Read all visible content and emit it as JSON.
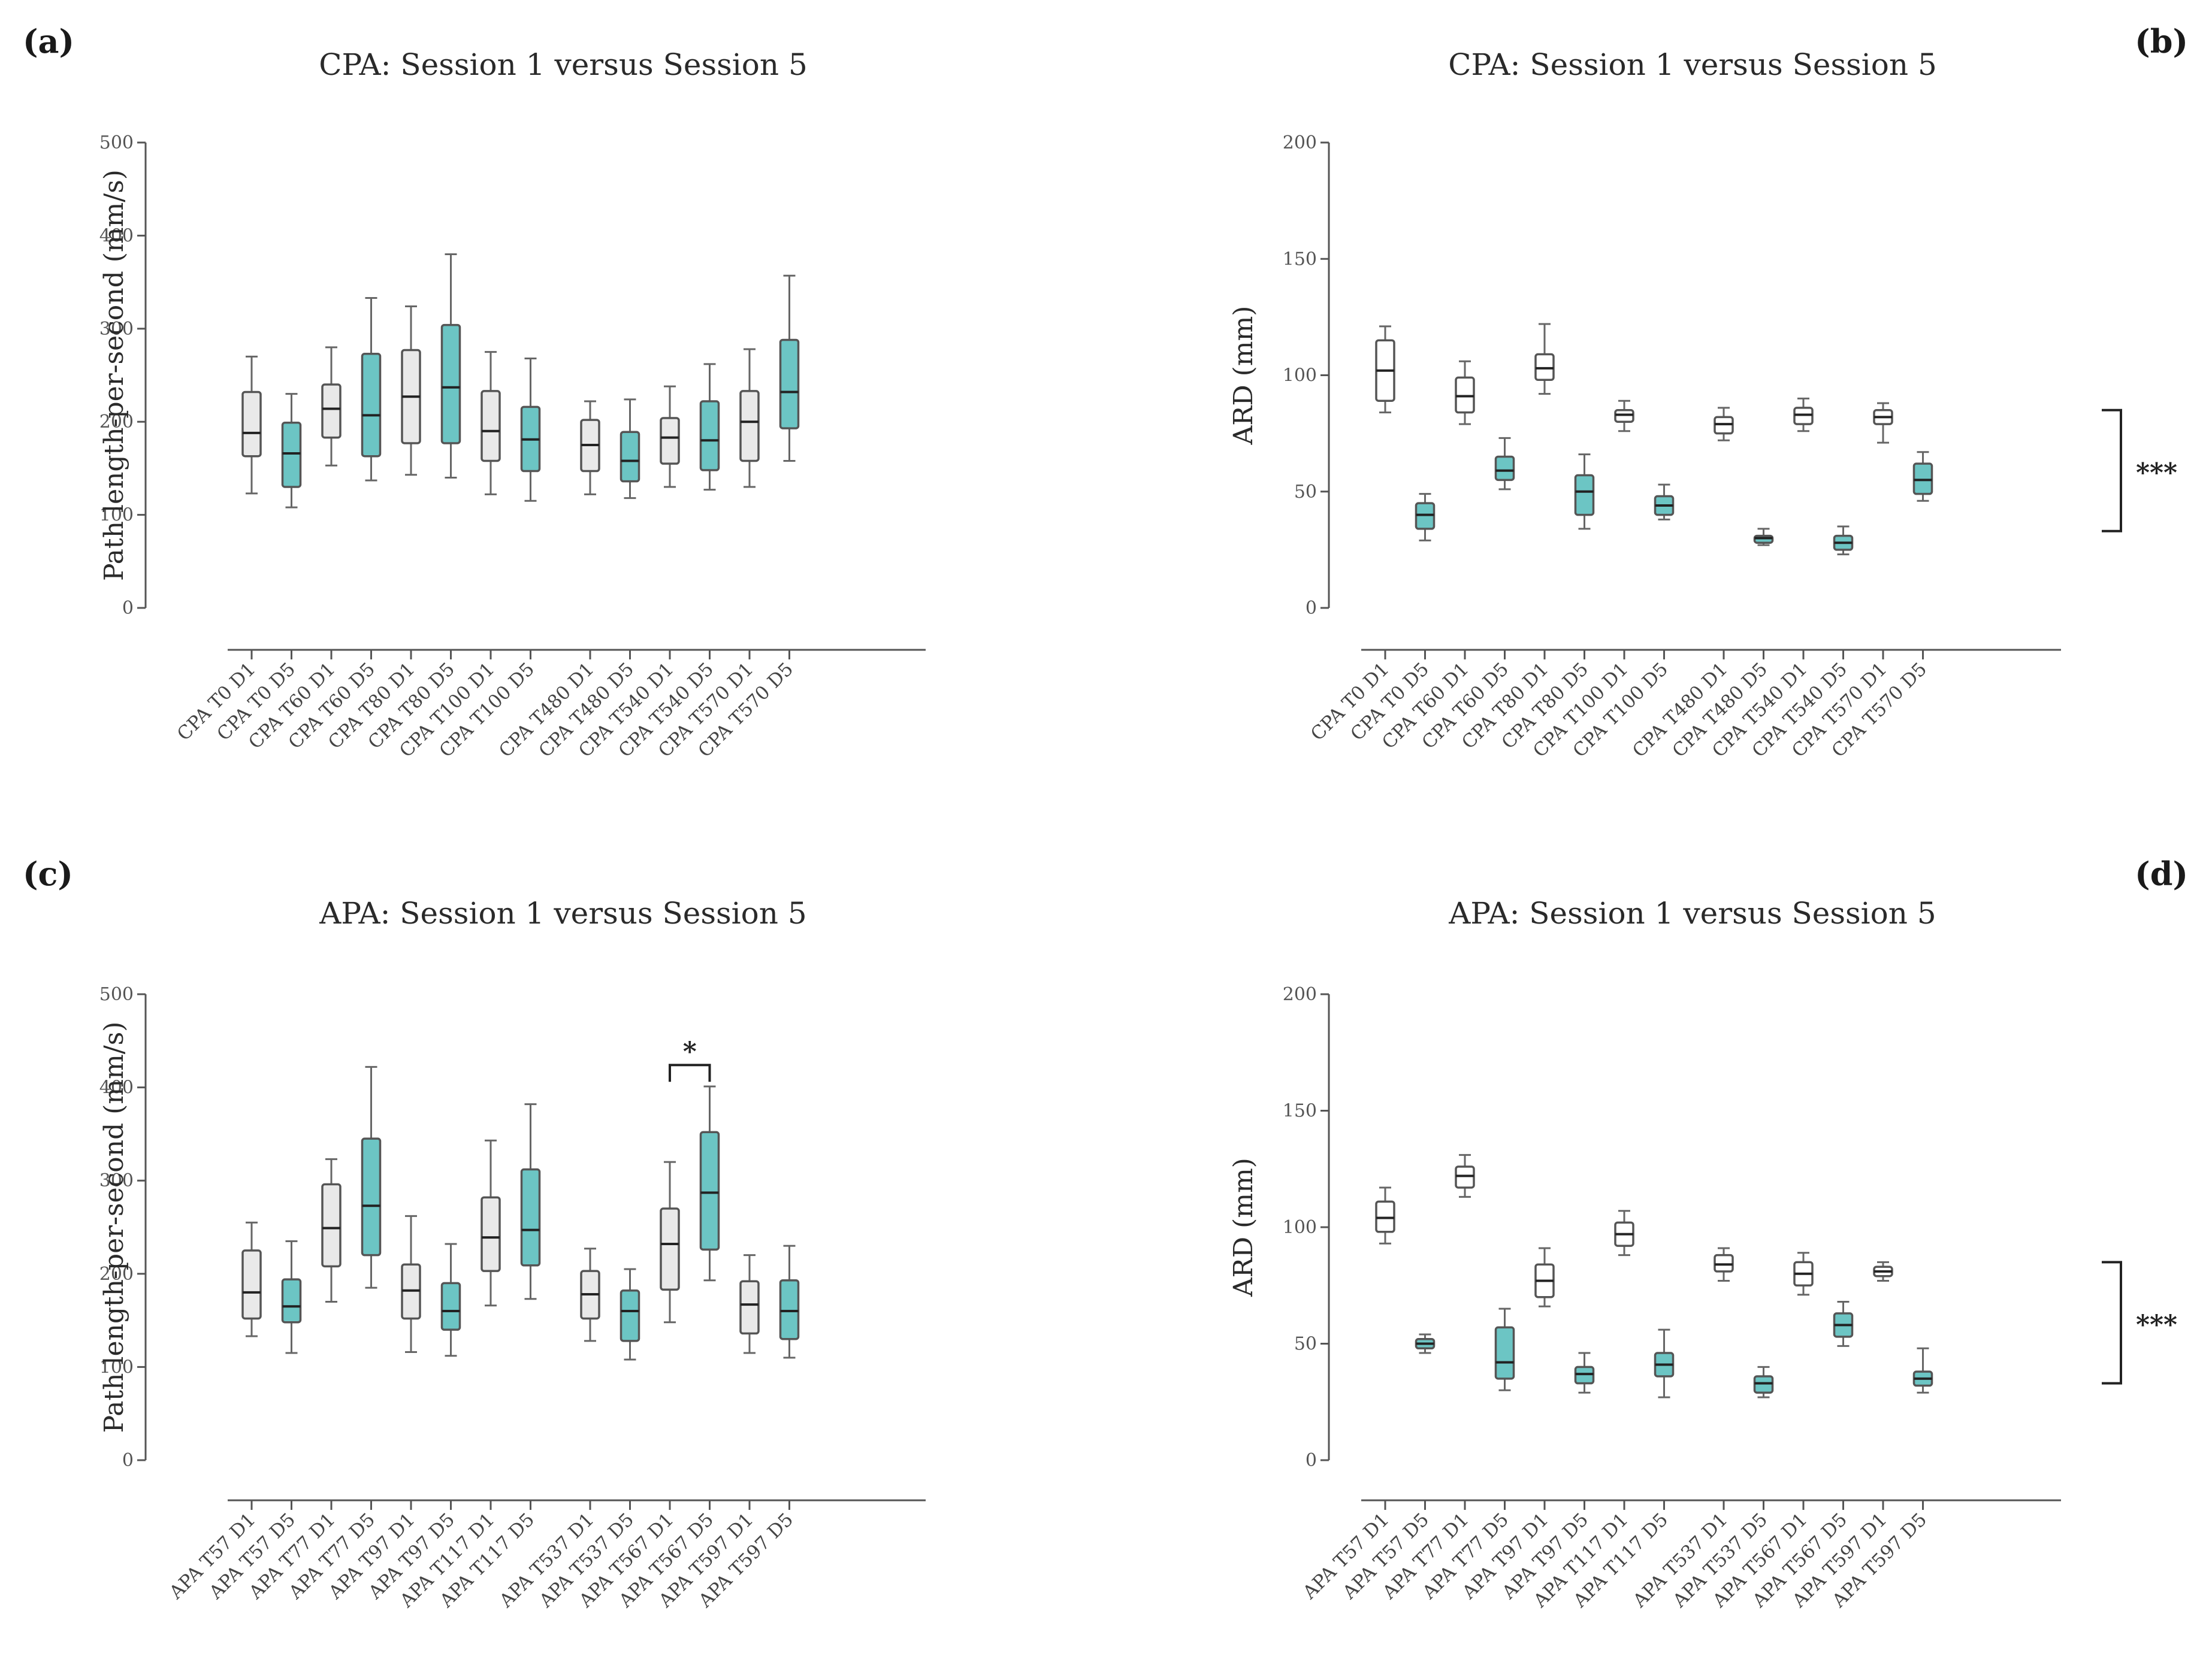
{
  "colors": {
    "d1_fill": "#e9e9e9",
    "d5_fill": "#6cc5c4",
    "axis": "#555555"
  },
  "chart_data": [
    {
      "type": "boxplot",
      "panel_label": "(a)",
      "title": "CPA: Session 1 versus Session 5",
      "ylabel": "Path length-per-second (mm/s)",
      "xlabel": "",
      "ylim": [
        0,
        500
      ],
      "yticks": [
        0,
        100,
        200,
        300,
        400,
        500
      ],
      "categories": [
        "CPA T0 D1",
        "CPA T0 D5",
        "CPA T60 D1",
        "CPA T60 D5",
        "CPA T80 D1",
        "CPA T80 D5",
        "CPA T100 D1",
        "CPA T100 D5",
        "CPA T480 D1",
        "CPA T480 D5",
        "CPA T540 D1",
        "CPA T540 D5",
        "CPA T570 D1",
        "CPA T570 D5"
      ],
      "series": [
        {
          "name": "D1",
          "color": "#e9e9e9",
          "boxes": [
            {
              "category": "CPA T0 D1",
              "min": 123,
              "q1": 163,
              "median": 188,
              "q3": 232,
              "max": 270
            },
            {
              "category": "CPA T60 D1",
              "min": 153,
              "q1": 183,
              "median": 214,
              "q3": 240,
              "max": 280
            },
            {
              "category": "CPA T80 D1",
              "min": 143,
              "q1": 177,
              "median": 227,
              "q3": 277,
              "max": 324
            },
            {
              "category": "CPA T100 D1",
              "min": 122,
              "q1": 158,
              "median": 190,
              "q3": 233,
              "max": 275
            },
            {
              "category": "CPA T480 D1",
              "min": 122,
              "q1": 147,
              "median": 175,
              "q3": 202,
              "max": 222
            },
            {
              "category": "CPA T540 D1",
              "min": 130,
              "q1": 155,
              "median": 183,
              "q3": 204,
              "max": 238
            },
            {
              "category": "CPA T570 D1",
              "min": 130,
              "q1": 158,
              "median": 200,
              "q3": 233,
              "max": 278
            }
          ]
        },
        {
          "name": "D5",
          "color": "#6cc5c4",
          "boxes": [
            {
              "category": "CPA T0 D5",
              "min": 108,
              "q1": 130,
              "median": 166,
              "q3": 199,
              "max": 230
            },
            {
              "category": "CPA T60 D5",
              "min": 137,
              "q1": 163,
              "median": 207,
              "q3": 273,
              "max": 333
            },
            {
              "category": "CPA T80 D5",
              "min": 140,
              "q1": 177,
              "median": 237,
              "q3": 304,
              "max": 380
            },
            {
              "category": "CPA T100 D5",
              "min": 115,
              "q1": 147,
              "median": 181,
              "q3": 216,
              "max": 268
            },
            {
              "category": "CPA T480 D5",
              "min": 118,
              "q1": 136,
              "median": 158,
              "q3": 189,
              "max": 224
            },
            {
              "category": "CPA T540 D5",
              "min": 127,
              "q1": 148,
              "median": 180,
              "q3": 222,
              "max": 262
            },
            {
              "category": "CPA T570 D5",
              "min": 158,
              "q1": 193,
              "median": 232,
              "q3": 288,
              "max": 357
            }
          ]
        }
      ],
      "annotations": []
    },
    {
      "type": "boxplot",
      "panel_label": "(b)",
      "title": "CPA: Session 1 versus Session 5",
      "ylabel": "ARD (mm)",
      "xlabel": "",
      "ylim": [
        0,
        200
      ],
      "yticks": [
        0,
        50,
        100,
        150,
        200
      ],
      "categories": [
        "CPA T0 D1",
        "CPA T0 D5",
        "CPA T60 D1",
        "CPA T60 D5",
        "CPA T80 D1",
        "CPA T80 D5",
        "CPA T100 D1",
        "CPA T100 D5",
        "CPA T480 D1",
        "CPA T480 D5",
        "CPA T540 D1",
        "CPA T540 D5",
        "CPA T570 D1",
        "CPA T570 D5"
      ],
      "series": [
        {
          "name": "D1",
          "color": "#ffffff",
          "boxes": [
            {
              "category": "CPA T0 D1",
              "min": 84,
              "q1": 89,
              "median": 102,
              "q3": 115,
              "max": 121
            },
            {
              "category": "CPA T60 D1",
              "min": 79,
              "q1": 84,
              "median": 91,
              "q3": 99,
              "max": 106
            },
            {
              "category": "CPA T80 D1",
              "min": 92,
              "q1": 98,
              "median": 103,
              "q3": 109,
              "max": 122
            },
            {
              "category": "CPA T100 D1",
              "min": 76,
              "q1": 80,
              "median": 83,
              "q3": 85,
              "max": 89
            },
            {
              "category": "CPA T480 D1",
              "min": 72,
              "q1": 75,
              "median": 79,
              "q3": 82,
              "max": 86
            },
            {
              "category": "CPA T540 D1",
              "min": 76,
              "q1": 79,
              "median": 83,
              "q3": 86,
              "max": 90
            },
            {
              "category": "CPA T570 D1",
              "min": 71,
              "q1": 79,
              "median": 82,
              "q3": 85,
              "max": 88
            }
          ]
        },
        {
          "name": "D5",
          "color": "#6cc5c4",
          "boxes": [
            {
              "category": "CPA T0 D5",
              "min": 29,
              "q1": 34,
              "median": 40,
              "q3": 45,
              "max": 49
            },
            {
              "category": "CPA T60 D5",
              "min": 51,
              "q1": 55,
              "median": 59,
              "q3": 65,
              "max": 73
            },
            {
              "category": "CPA T80 D5",
              "min": 34,
              "q1": 40,
              "median": 50,
              "q3": 57,
              "max": 66
            },
            {
              "category": "CPA T100 D5",
              "min": 38,
              "q1": 40,
              "median": 44,
              "q3": 48,
              "max": 53
            },
            {
              "category": "CPA T480 D5",
              "min": 27,
              "q1": 28,
              "median": 30,
              "q3": 31,
              "max": 34
            },
            {
              "category": "CPA T540 D5",
              "min": 23,
              "q1": 25,
              "median": 28,
              "q3": 31,
              "max": 35
            },
            {
              "category": "CPA T570 D5",
              "min": 46,
              "q1": 49,
              "median": 55,
              "q3": 62,
              "max": 67
            }
          ]
        }
      ],
      "annotations": [
        {
          "type": "bracket",
          "from": 85,
          "to": 33,
          "label": "***"
        }
      ]
    },
    {
      "type": "boxplot",
      "panel_label": "(c)",
      "title": "APA: Session 1 versus Session 5",
      "ylabel": "Path length-per-second (mm/s)",
      "xlabel": "",
      "ylim": [
        0,
        500
      ],
      "yticks": [
        0,
        100,
        200,
        300,
        400,
        500
      ],
      "categories": [
        "APA T57 D1",
        "APA T57 D5",
        "APA T77 D1",
        "APA T77 D5",
        "APA T97 D1",
        "APA T97 D5",
        "APA T117 D1",
        "APA T117 D5",
        "APA T537 D1",
        "APA T537 D5",
        "APA T567 D1",
        "APA T567 D5",
        "APA T597 D1",
        "APA T597 D5"
      ],
      "series": [
        {
          "name": "D1",
          "color": "#e9e9e9",
          "boxes": [
            {
              "category": "APA T57 D1",
              "min": 133,
              "q1": 152,
              "median": 180,
              "q3": 225,
              "max": 255
            },
            {
              "category": "APA T77 D1",
              "min": 170,
              "q1": 208,
              "median": 249,
              "q3": 296,
              "max": 323
            },
            {
              "category": "APA T97 D1",
              "min": 116,
              "q1": 152,
              "median": 182,
              "q3": 210,
              "max": 262
            },
            {
              "category": "APA T117 D1",
              "min": 166,
              "q1": 203,
              "median": 239,
              "q3": 282,
              "max": 343
            },
            {
              "category": "APA T537 D1",
              "min": 128,
              "q1": 152,
              "median": 178,
              "q3": 203,
              "max": 227
            },
            {
              "category": "APA T567 D1",
              "min": 148,
              "q1": 183,
              "median": 232,
              "q3": 270,
              "max": 320
            },
            {
              "category": "APA T597 D1",
              "min": 115,
              "q1": 136,
              "median": 167,
              "q3": 192,
              "max": 220
            }
          ]
        },
        {
          "name": "D5",
          "color": "#6cc5c4",
          "boxes": [
            {
              "category": "APA T57 D5",
              "min": 115,
              "q1": 148,
              "median": 165,
              "q3": 194,
              "max": 235
            },
            {
              "category": "APA T77 D5",
              "min": 185,
              "q1": 220,
              "median": 273,
              "q3": 345,
              "max": 422
            },
            {
              "category": "APA T97 D5",
              "min": 112,
              "q1": 140,
              "median": 160,
              "q3": 190,
              "max": 232
            },
            {
              "category": "APA T117 D5",
              "min": 173,
              "q1": 209,
              "median": 247,
              "q3": 312,
              "max": 382
            },
            {
              "category": "APA T537 D5",
              "min": 108,
              "q1": 128,
              "median": 160,
              "q3": 182,
              "max": 205
            },
            {
              "category": "APA T567 D5",
              "min": 193,
              "q1": 226,
              "median": 287,
              "q3": 352,
              "max": 401
            },
            {
              "category": "APA T597 D5",
              "min": 110,
              "q1": 130,
              "median": 160,
              "q3": 193,
              "max": 230
            }
          ]
        }
      ],
      "annotations": [
        {
          "type": "bracket_top",
          "between": [
            "APA T567 D1",
            "APA T567 D5"
          ],
          "at": 424,
          "label": "*"
        }
      ]
    },
    {
      "type": "boxplot",
      "panel_label": "(d)",
      "title": "APA: Session 1 versus Session 5",
      "ylabel": "ARD (mm)",
      "xlabel": "",
      "ylim": [
        0,
        200
      ],
      "yticks": [
        0,
        50,
        100,
        150,
        200
      ],
      "categories": [
        "APA T57 D1",
        "APA T57 D5",
        "APA T77 D1",
        "APA T77 D5",
        "APA T97 D1",
        "APA T97 D5",
        "APA T117 D1",
        "APA T117 D5",
        "APA T537 D1",
        "APA T537 D5",
        "APA T567 D1",
        "APA T567 D5",
        "APA T597 D1",
        "APA T597 D5"
      ],
      "series": [
        {
          "name": "D1",
          "color": "#ffffff",
          "boxes": [
            {
              "category": "APA T57 D1",
              "min": 93,
              "q1": 98,
              "median": 104,
              "q3": 111,
              "max": 117
            },
            {
              "category": "APA T77 D1",
              "min": 113,
              "q1": 117,
              "median": 122,
              "q3": 126,
              "max": 131
            },
            {
              "category": "APA T97 D1",
              "min": 66,
              "q1": 70,
              "median": 77,
              "q3": 84,
              "max": 91
            },
            {
              "category": "APA T117 D1",
              "min": 88,
              "q1": 92,
              "median": 97,
              "q3": 102,
              "max": 107
            },
            {
              "category": "APA T537 D1",
              "min": 77,
              "q1": 81,
              "median": 84,
              "q3": 88,
              "max": 91
            },
            {
              "category": "APA T567 D1",
              "min": 71,
              "q1": 75,
              "median": 80,
              "q3": 85,
              "max": 89
            },
            {
              "category": "APA T597 D1",
              "min": 77,
              "q1": 79,
              "median": 81,
              "q3": 83,
              "max": 85
            }
          ]
        },
        {
          "name": "D5",
          "color": "#6cc5c4",
          "boxes": [
            {
              "category": "APA T57 D5",
              "min": 46,
              "q1": 48,
              "median": 50,
              "q3": 52,
              "max": 54
            },
            {
              "category": "APA T77 D5",
              "min": 30,
              "q1": 35,
              "median": 42,
              "q3": 57,
              "max": 65
            },
            {
              "category": "APA T97 D5",
              "min": 29,
              "q1": 33,
              "median": 37,
              "q3": 40,
              "max": 46
            },
            {
              "category": "APA T117 D5",
              "min": 27,
              "q1": 36,
              "median": 41,
              "q3": 46,
              "max": 56
            },
            {
              "category": "APA T537 D5",
              "min": 27,
              "q1": 29,
              "median": 33,
              "q3": 36,
              "max": 40
            },
            {
              "category": "APA T567 D5",
              "min": 49,
              "q1": 53,
              "median": 58,
              "q3": 63,
              "max": 68
            },
            {
              "category": "APA T597 D5",
              "min": 29,
              "q1": 32,
              "median": 35,
              "q3": 38,
              "max": 48
            }
          ]
        }
      ],
      "annotations": [
        {
          "type": "bracket",
          "from": 85,
          "to": 33,
          "label": "***"
        }
      ]
    }
  ]
}
